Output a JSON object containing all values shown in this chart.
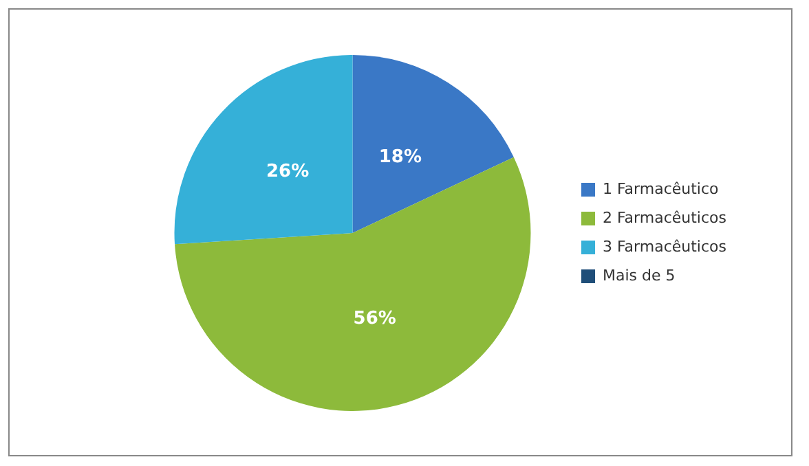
{
  "chart_data": {
    "type": "pie",
    "categories": [
      "1 Farmacêutico",
      "2 Farmacêuticos",
      "3 Farmacêuticos",
      "Mais de 5"
    ],
    "values": [
      18,
      56,
      26,
      0
    ],
    "colors": [
      "#3a78c6",
      "#8dba3b",
      "#35b0d8",
      "#1f4e79"
    ],
    "value_labels": [
      "18%",
      "56%",
      "26%",
      null
    ],
    "legend": "right"
  }
}
